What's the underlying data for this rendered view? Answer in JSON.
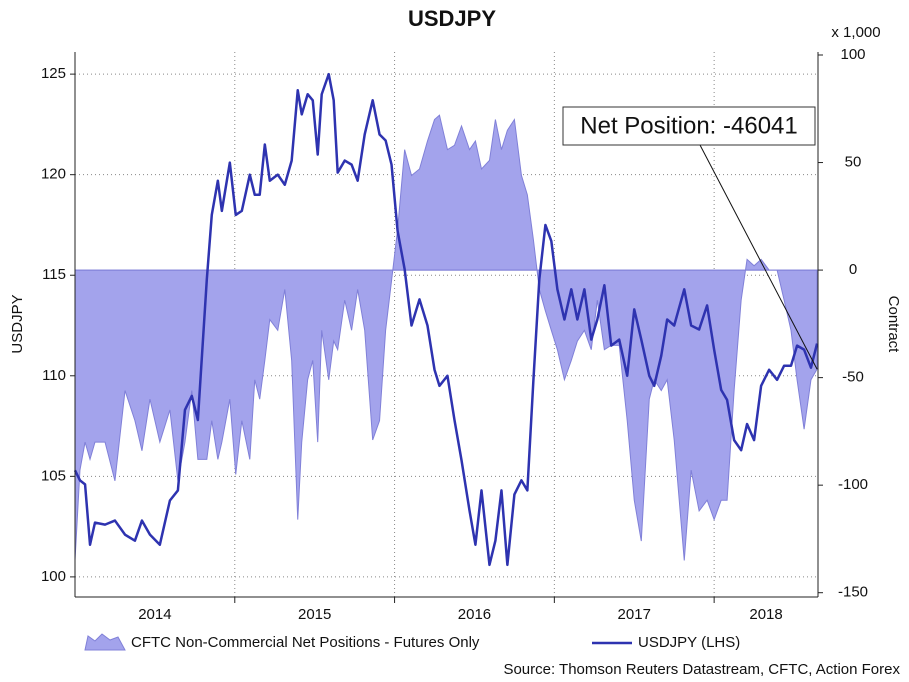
{
  "chart_data": {
    "type": "combo",
    "title": "USDJPY",
    "y_label": "USDJPY",
    "y2_label": "Contract",
    "y2_unit_label": "x 1,000",
    "annotation": "Net Position: -46041",
    "source": "Source: Thomson Reuters Datastream, CFTC, Action Forex",
    "xlim": [
      2014,
      2018.65
    ],
    "xticks": [
      {
        "value": 2014.5,
        "label": "2014"
      },
      {
        "value": 2015.5,
        "label": "2015"
      },
      {
        "value": 2016.5,
        "label": "2016"
      },
      {
        "value": 2017.5,
        "label": "2017"
      },
      {
        "value": 2018.325,
        "label": "2018"
      }
    ],
    "x_grid": [
      2015,
      2016,
      2017,
      2018
    ],
    "ylim": [
      99,
      126.1
    ],
    "yticks": [
      100,
      105,
      110,
      115,
      120,
      125
    ],
    "y2lim": [
      -152,
      101.4
    ],
    "y2ticks": [
      -150,
      -100,
      -50,
      0,
      50,
      100
    ],
    "grid": true,
    "x": [
      2014.0,
      2014.031,
      2014.063,
      2014.094,
      2014.125,
      2014.188,
      2014.25,
      2014.313,
      2014.375,
      2014.419,
      2014.469,
      2014.531,
      2014.594,
      2014.644,
      2014.688,
      2014.731,
      2014.769,
      2014.825,
      2014.856,
      2014.894,
      2014.919,
      2014.969,
      2015.006,
      2015.044,
      2015.094,
      2015.125,
      2015.156,
      2015.188,
      2015.219,
      2015.269,
      2015.313,
      2015.356,
      2015.394,
      2015.419,
      2015.456,
      2015.488,
      2015.519,
      2015.544,
      2015.588,
      2015.619,
      2015.644,
      2015.688,
      2015.731,
      2015.769,
      2015.813,
      2015.863,
      2015.906,
      2015.944,
      2015.981,
      2016.019,
      2016.063,
      2016.106,
      2016.156,
      2016.206,
      2016.25,
      2016.281,
      2016.331,
      2016.375,
      2016.419,
      2016.469,
      2016.506,
      2016.544,
      2016.594,
      2016.631,
      2016.669,
      2016.706,
      2016.75,
      2016.794,
      2016.831,
      2016.869,
      2016.906,
      2016.944,
      2016.981,
      2017.019,
      2017.063,
      2017.106,
      2017.144,
      2017.188,
      2017.231,
      2017.269,
      2017.313,
      2017.356,
      2017.406,
      2017.456,
      2017.5,
      2017.544,
      2017.594,
      2017.625,
      2017.669,
      2017.706,
      2017.75,
      2017.813,
      2017.856,
      2017.906,
      2017.956,
      2018.0,
      2018.044,
      2018.081,
      2018.125,
      2018.169,
      2018.206,
      2018.25,
      2018.294,
      2018.344,
      2018.394,
      2018.438,
      2018.481,
      2018.519,
      2018.563,
      2018.606,
      2018.644
    ],
    "series": [
      {
        "name": "CFTC Non-Commercial Net Positions - Futures Only",
        "type": "area",
        "axis": "y2",
        "color": "#a3a3ec",
        "edge_color": "#8080d8",
        "values": [
          -135,
          -93,
          -80,
          -88,
          -80,
          -80,
          -98,
          -56,
          -70,
          -84,
          -60,
          -80,
          -65,
          -98,
          -80,
          -56,
          -88,
          -88,
          -70,
          -88,
          -80,
          -60,
          -95,
          -70,
          -88,
          -51,
          -60,
          -42,
          -23,
          -28,
          -9,
          -42,
          -116,
          -80,
          -51,
          -42,
          -80,
          -28,
          -51,
          -33,
          -37,
          -14,
          -28,
          -9,
          -28,
          -79,
          -70,
          -28,
          -5,
          19,
          56,
          44,
          47,
          60,
          70,
          72,
          56,
          58,
          67,
          56,
          60,
          47,
          51,
          70,
          56,
          65,
          70,
          44,
          35,
          14,
          -9,
          -19,
          -28,
          -37,
          -51,
          -42,
          -33,
          -28,
          -37,
          -14,
          -37,
          -35,
          -35,
          -70,
          -107,
          -126,
          -60,
          -51,
          -56,
          -51,
          -79,
          -135,
          -93,
          -112,
          -107,
          -116,
          -107,
          -107,
          -56,
          -14,
          5,
          2,
          5,
          0,
          0,
          -14,
          -28,
          -51,
          -74,
          -51,
          -46.041
        ]
      },
      {
        "name": "USDJPY (LHS)",
        "type": "line",
        "axis": "y",
        "color": "#2e33b0",
        "values": [
          105.3,
          104.8,
          104.6,
          101.6,
          102.7,
          102.6,
          102.8,
          102.1,
          101.8,
          102.8,
          102.1,
          101.6,
          103.8,
          104.3,
          108.3,
          109.0,
          107.8,
          114.8,
          118.0,
          119.7,
          118.2,
          120.6,
          118.0,
          118.2,
          120.0,
          119.0,
          119.0,
          121.5,
          119.7,
          120.0,
          119.5,
          120.7,
          124.2,
          123.0,
          124.0,
          123.7,
          121.0,
          124.0,
          125.0,
          123.7,
          120.1,
          120.7,
          120.5,
          119.7,
          122.0,
          123.7,
          122.0,
          121.7,
          120.5,
          117.2,
          115.3,
          112.5,
          113.8,
          112.5,
          110.3,
          109.5,
          110.0,
          107.8,
          105.8,
          103.3,
          101.6,
          104.3,
          100.6,
          101.8,
          104.3,
          100.6,
          104.1,
          104.8,
          104.3,
          109.8,
          114.8,
          117.5,
          116.7,
          114.3,
          112.8,
          114.3,
          112.8,
          114.3,
          111.8,
          112.8,
          114.5,
          111.5,
          111.8,
          110.0,
          113.3,
          111.8,
          110.0,
          109.5,
          111.0,
          112.8,
          112.5,
          114.3,
          112.5,
          112.3,
          113.5,
          111.3,
          109.3,
          108.8,
          106.8,
          106.3,
          107.6,
          106.8,
          109.5,
          110.3,
          109.8,
          110.5,
          110.5,
          111.5,
          111.3,
          110.4,
          111.6
        ]
      }
    ]
  }
}
